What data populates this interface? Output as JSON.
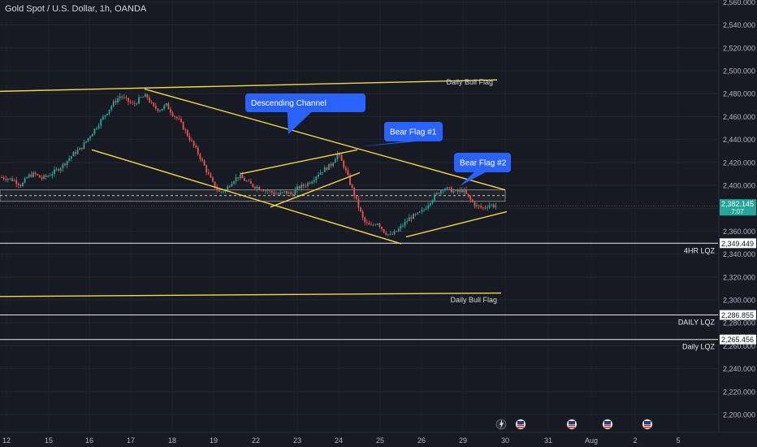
{
  "header": {
    "symbol_title": "Gold Spot / U.S. Dollar, 1h, OANDA"
  },
  "price_badges": {
    "current_price": "2,382.145",
    "countdown": "7:07"
  },
  "annotations": {
    "descending_channel": "Descending Channel",
    "bear_flag_1": "Bear Flag #1",
    "bear_flag_2": "Bear Flag #2",
    "daily_bull_flag_top": "Daily Bull Flag",
    "daily_bull_flag_bottom": "Daily Bull Flag",
    "lqz_4hr_label": "4HR LQZ",
    "lqz_4hr_value": "2,349.449",
    "daily_lqz_1_label": "DAILY LQZ",
    "daily_lqz_1_value": "2,286.855",
    "daily_lqz_2_label": "Daily LQZ",
    "daily_lqz_2_value": "2,265.456"
  },
  "colors": {
    "background": "#171a22",
    "up": "#26a69a",
    "down": "#ef5350",
    "trendline": "#f5d742",
    "callout": "#2962ff",
    "axis_text": "#b2b5be",
    "price_badge": "#26a69a"
  },
  "chart_data": {
    "type": "candlestick",
    "title": "Gold Spot / U.S. Dollar, 1h, OANDA",
    "ylim": [
      2190,
      2565
    ],
    "y_ticks": [
      2200,
      2220,
      2240,
      2260,
      2280,
      2300,
      2320,
      2340,
      2360,
      2380,
      2400,
      2420,
      2440,
      2460,
      2480,
      2500,
      2520,
      2540,
      2560
    ],
    "y_tick_labels": [
      "2,200.000",
      "2,220.000",
      "2,240.000",
      "2,260.000",
      "2,280.000",
      "2,300.000",
      "2,320.000",
      "2,340.000",
      "2,360.000",
      "2,380.000",
      "2,400.000",
      "2,420.000",
      "2,440.000",
      "2,460.000",
      "2,480.000",
      "2,500.000",
      "2,520.000",
      "2,540.000",
      "2,560.000"
    ],
    "x_tick_labels": [
      "12",
      "15",
      "16",
      "17",
      "18",
      "19",
      "22",
      "23",
      "24",
      "25",
      "26",
      "29",
      "30",
      "31",
      "Aug",
      "2",
      "5"
    ],
    "price_path": [
      [
        0,
        2407
      ],
      [
        1,
        2406
      ],
      [
        2,
        2404
      ],
      [
        3,
        2400
      ],
      [
        4,
        2408
      ],
      [
        5,
        2410
      ],
      [
        6,
        2406
      ],
      [
        7,
        2408
      ],
      [
        8,
        2412
      ],
      [
        9,
        2416
      ],
      [
        10,
        2422
      ],
      [
        11,
        2428
      ],
      [
        12,
        2432
      ],
      [
        13,
        2440
      ],
      [
        14,
        2448
      ],
      [
        15,
        2456
      ],
      [
        16,
        2464
      ],
      [
        17,
        2472
      ],
      [
        18,
        2478
      ],
      [
        19,
        2474
      ],
      [
        20,
        2470
      ],
      [
        21,
        2476
      ],
      [
        22,
        2478
      ],
      [
        23,
        2468
      ],
      [
        24,
        2466
      ],
      [
        25,
        2470
      ],
      [
        26,
        2462
      ],
      [
        27,
        2456
      ],
      [
        28,
        2446
      ],
      [
        29,
        2436
      ],
      [
        30,
        2426
      ],
      [
        31,
        2414
      ],
      [
        32,
        2402
      ],
      [
        33,
        2394
      ],
      [
        34,
        2396
      ],
      [
        35,
        2404
      ],
      [
        36,
        2408
      ],
      [
        37,
        2404
      ],
      [
        38,
        2400
      ],
      [
        39,
        2398
      ],
      [
        40,
        2396
      ],
      [
        41,
        2394
      ],
      [
        42,
        2392
      ],
      [
        43,
        2394
      ],
      [
        44,
        2392
      ],
      [
        45,
        2398
      ],
      [
        46,
        2400
      ],
      [
        47,
        2404
      ],
      [
        48,
        2410
      ],
      [
        49,
        2414
      ],
      [
        50,
        2418
      ],
      [
        51,
        2428
      ],
      [
        52,
        2416
      ],
      [
        53,
        2400
      ],
      [
        54,
        2384
      ],
      [
        55,
        2368
      ],
      [
        56,
        2364
      ],
      [
        57,
        2368
      ],
      [
        58,
        2360
      ],
      [
        59,
        2356
      ],
      [
        60,
        2360
      ],
      [
        61,
        2366
      ],
      [
        62,
        2372
      ],
      [
        63,
        2374
      ],
      [
        64,
        2378
      ],
      [
        65,
        2386
      ],
      [
        66,
        2392
      ],
      [
        67,
        2398
      ],
      [
        68,
        2396
      ],
      [
        69,
        2394
      ],
      [
        70,
        2396
      ],
      [
        71,
        2388
      ],
      [
        72,
        2382
      ],
      [
        73,
        2380
      ],
      [
        74,
        2383
      ],
      [
        75,
        2382
      ]
    ],
    "volume_scale": [
      2.0,
      0.5
    ],
    "levels": [
      {
        "name": "4HR LQZ",
        "value": 2349.449
      },
      {
        "name": "DAILY LQZ",
        "value": 2286.855
      },
      {
        "name": "Daily LQZ",
        "value": 2265.456
      }
    ],
    "zone": [
      2386,
      2396
    ],
    "current_price": 2382.145
  }
}
